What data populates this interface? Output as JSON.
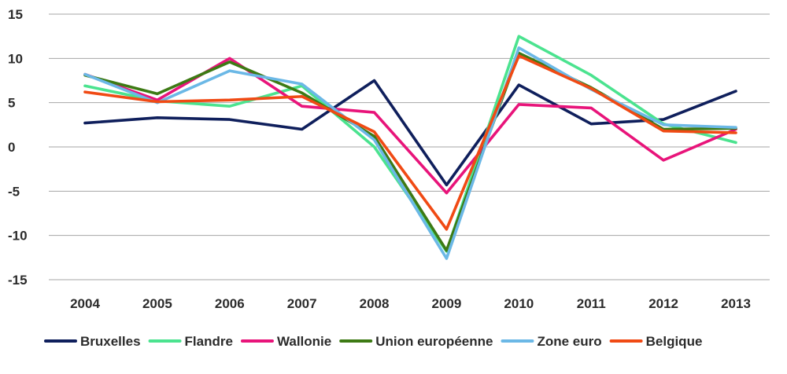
{
  "chart_data": {
    "type": "line",
    "title": "",
    "xlabel": "",
    "ylabel": "",
    "categories": [
      "2004",
      "2005",
      "2006",
      "2007",
      "2008",
      "2009",
      "2010",
      "2011",
      "2012",
      "2013"
    ],
    "ylim": [
      -15,
      15
    ],
    "yticks": [
      15,
      10,
      5,
      0,
      -5,
      -10,
      -15
    ],
    "grid": true,
    "legend_position": "bottom",
    "series": [
      {
        "name": "Bruxelles",
        "color": "#0f1f5c",
        "values": [
          2.7,
          3.3,
          3.1,
          2.0,
          7.5,
          -4.3,
          7.0,
          2.6,
          3.1,
          6.3
        ]
      },
      {
        "name": "Flandre",
        "color": "#4be38f",
        "values": [
          6.9,
          5.2,
          4.6,
          6.9,
          0.0,
          -11.8,
          12.5,
          8.1,
          2.6,
          0.5
        ]
      },
      {
        "name": "Wallonie",
        "color": "#e8147a",
        "values": [
          8.2,
          5.3,
          10.0,
          4.6,
          3.9,
          -5.2,
          4.8,
          4.4,
          -1.5,
          2.0
        ]
      },
      {
        "name": "Union européenne",
        "color": "#3d7a14",
        "values": [
          8.1,
          6.0,
          9.6,
          6.1,
          1.2,
          -11.7,
          10.6,
          6.7,
          2.0,
          2.1
        ]
      },
      {
        "name": "Zone euro",
        "color": "#6bb8e6",
        "values": [
          8.2,
          5.0,
          8.6,
          7.1,
          0.8,
          -12.6,
          11.2,
          6.5,
          2.5,
          2.2
        ]
      },
      {
        "name": "Belgique",
        "color": "#f04a14",
        "values": [
          6.2,
          5.1,
          5.3,
          5.7,
          1.7,
          -9.3,
          10.3,
          6.6,
          1.8,
          1.6
        ]
      }
    ]
  }
}
